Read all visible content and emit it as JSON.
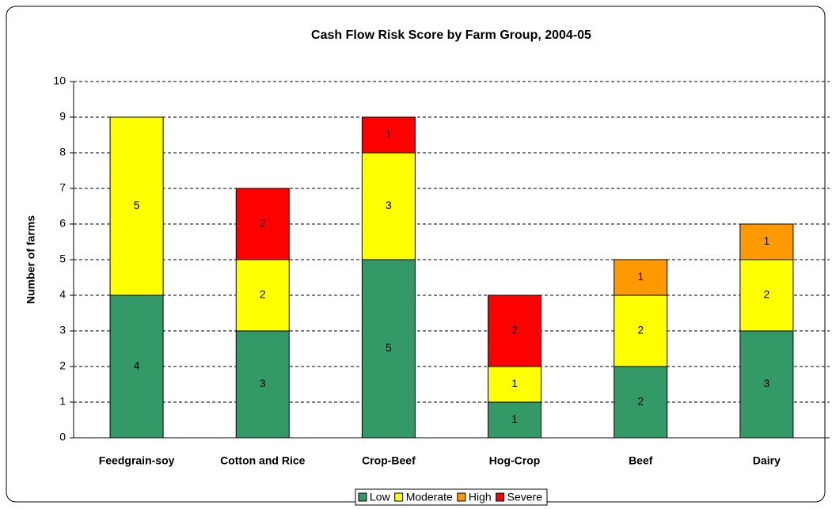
{
  "chart_data": {
    "type": "bar",
    "stacked": true,
    "title": "Cash Flow Risk Score by Farm Group, 2004-05",
    "y_label": "Number of farms",
    "categories": [
      "Feedgrain-soy",
      "Cotton and Rice",
      "Crop-Beef",
      "Hog-Crop",
      "Beef",
      "Dairy"
    ],
    "series": [
      {
        "name": "Low",
        "color": "#339966",
        "values": [
          4,
          3,
          5,
          1,
          2,
          3
        ]
      },
      {
        "name": "Moderate",
        "color": "#ffff00",
        "values": [
          5,
          2,
          3,
          1,
          2,
          2
        ]
      },
      {
        "name": "High",
        "color": "#ff9900",
        "values": [
          null,
          null,
          null,
          null,
          1,
          1
        ]
      },
      {
        "name": "Severe",
        "color": "#ff0000",
        "values": [
          null,
          2,
          1,
          2,
          null,
          null
        ]
      }
    ],
    "ylim": [
      0,
      10
    ],
    "yticks": [
      0,
      1,
      2,
      3,
      4,
      5,
      6,
      7,
      8,
      9,
      10
    ],
    "grid": true,
    "legend": "bottom"
  }
}
